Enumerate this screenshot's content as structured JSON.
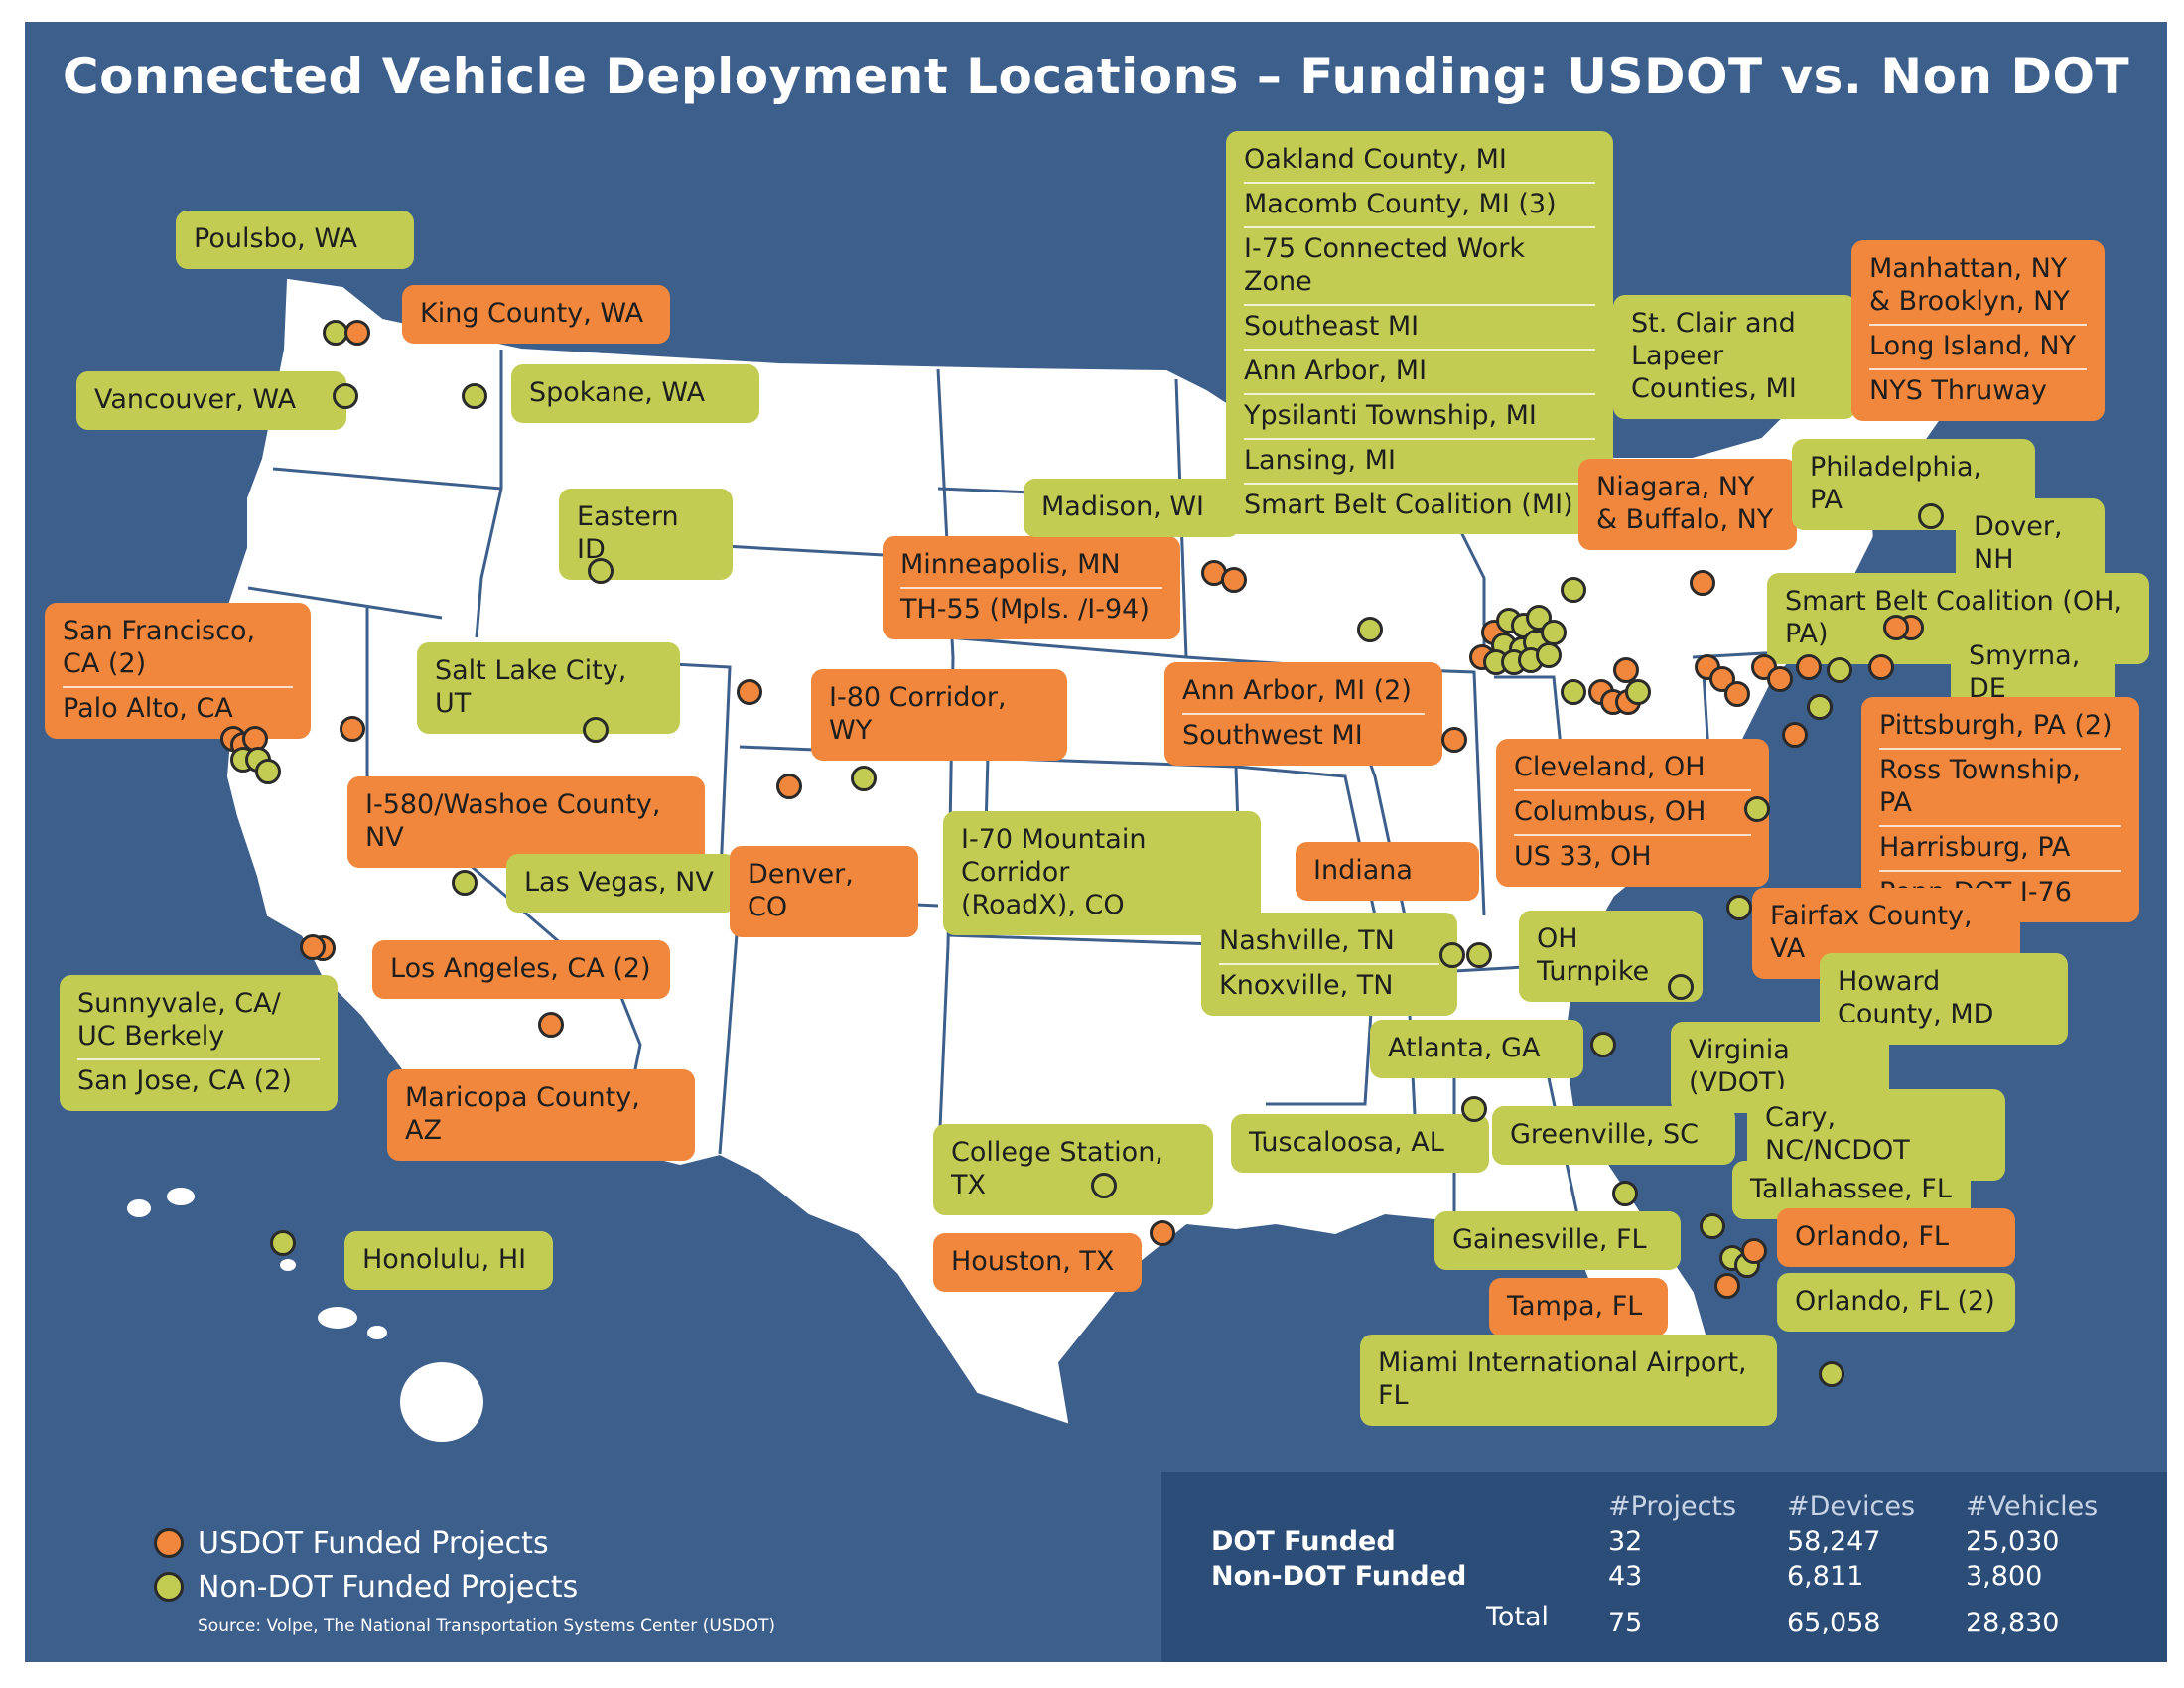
{
  "title": "Connected Vehicle Deployment Locations – Funding: USDOT vs. Non DOT",
  "colors": {
    "background": "#3d5f8c",
    "land": "#ffffff",
    "borders": "#3d5f8c",
    "usdot": "#f0873c",
    "non_dot": "#c3cc52"
  },
  "callouts": [
    {
      "lines": [
        "Poulsbo, WA"
      ],
      "type": "non_dot"
    },
    {
      "lines": [
        "King County, WA"
      ],
      "type": "usdot"
    },
    {
      "lines": [
        "Vancouver, WA"
      ],
      "type": "non_dot"
    },
    {
      "lines": [
        "Spokane, WA"
      ],
      "type": "non_dot"
    },
    {
      "lines": [
        "Eastern ID"
      ],
      "type": "non_dot"
    },
    {
      "lines": [
        "San Francisco, CA (2)",
        "Palo Alto, CA"
      ],
      "type": "usdot"
    },
    {
      "lines": [
        "Salt Lake City, UT"
      ],
      "type": "non_dot"
    },
    {
      "lines": [
        "I-580/Washoe County, NV"
      ],
      "type": "usdot"
    },
    {
      "lines": [
        "Las Vegas, NV"
      ],
      "type": "non_dot"
    },
    {
      "lines": [
        "Los Angeles, CA (2)"
      ],
      "type": "usdot"
    },
    {
      "lines": [
        "Sunnyvale, CA/\nUC Berkely",
        "San Jose, CA (2)"
      ],
      "type": "non_dot"
    },
    {
      "lines": [
        "Maricopa County, AZ"
      ],
      "type": "usdot"
    },
    {
      "lines": [
        "Honolulu, HI"
      ],
      "type": "non_dot"
    },
    {
      "lines": [
        "I-80 Corridor, WY"
      ],
      "type": "usdot"
    },
    {
      "lines": [
        "Denver, CO"
      ],
      "type": "usdot"
    },
    {
      "lines": [
        "I-70 Mountain Corridor\n(RoadX), CO"
      ],
      "type": "non_dot"
    },
    {
      "lines": [
        "Minneapolis, MN",
        "TH-55 (Mpls. /I-94)"
      ],
      "type": "usdot"
    },
    {
      "lines": [
        "Madison, WI"
      ],
      "type": "non_dot"
    },
    {
      "lines": [
        "College Station, TX"
      ],
      "type": "non_dot"
    },
    {
      "lines": [
        "Houston, TX"
      ],
      "type": "usdot"
    },
    {
      "lines": [
        "Oakland County, MI",
        "Macomb County, MI (3)",
        "I-75 Connected Work Zone",
        "Southeast MI",
        "Ann Arbor, MI",
        "Ypsilanti Township, MI",
        "Lansing, MI",
        "Smart Belt Coalition (MI)"
      ],
      "type": "non_dot"
    },
    {
      "lines": [
        "St. Clair and\nLapeer Counties, MI"
      ],
      "type": "non_dot"
    },
    {
      "lines": [
        "Manhattan, NY\n& Brooklyn, NY",
        "Long Island, NY",
        "NYS Thruway"
      ],
      "type": "usdot"
    },
    {
      "lines": [
        "Niagara, NY\n& Buffalo, NY"
      ],
      "type": "usdot"
    },
    {
      "lines": [
        "Philadelphia, PA"
      ],
      "type": "non_dot"
    },
    {
      "lines": [
        "Dover, NH"
      ],
      "type": "non_dot"
    },
    {
      "lines": [
        "Smart Belt Coalition (OH, PA)"
      ],
      "type": "non_dot"
    },
    {
      "lines": [
        "Smyrna, DE"
      ],
      "type": "non_dot"
    },
    {
      "lines": [
        "Ann Arbor, MI (2)",
        "Southwest MI"
      ],
      "type": "usdot"
    },
    {
      "lines": [
        "Cleveland, OH",
        "Columbus, OH",
        "US 33, OH"
      ],
      "type": "usdot"
    },
    {
      "lines": [
        "Pittsburgh, PA (2)",
        "Ross Township, PA",
        "Harrisburg, PA",
        "Penn DOT I-76"
      ],
      "type": "usdot"
    },
    {
      "lines": [
        "Indiana"
      ],
      "type": "usdot"
    },
    {
      "lines": [
        "OH Turnpike"
      ],
      "type": "non_dot"
    },
    {
      "lines": [
        "Fairfax County, VA"
      ],
      "type": "usdot"
    },
    {
      "lines": [
        "Nashville, TN",
        "Knoxville, TN"
      ],
      "type": "non_dot"
    },
    {
      "lines": [
        "Howard County, MD"
      ],
      "type": "non_dot"
    },
    {
      "lines": [
        "Atlanta, GA"
      ],
      "type": "non_dot"
    },
    {
      "lines": [
        "Virginia (VDOT)"
      ],
      "type": "non_dot"
    },
    {
      "lines": [
        "Cary, NC/NCDOT"
      ],
      "type": "non_dot"
    },
    {
      "lines": [
        "Tuscaloosa, AL"
      ],
      "type": "non_dot"
    },
    {
      "lines": [
        "Greenville, SC"
      ],
      "type": "non_dot"
    },
    {
      "lines": [
        "Tallahassee, FL"
      ],
      "type": "non_dot"
    },
    {
      "lines": [
        "Gainesville, FL"
      ],
      "type": "non_dot"
    },
    {
      "lines": [
        "Orlando, FL"
      ],
      "type": "usdot"
    },
    {
      "lines": [
        "Tampa, FL"
      ],
      "type": "usdot"
    },
    {
      "lines": [
        "Orlando, FL (2)"
      ],
      "type": "non_dot"
    },
    {
      "lines": [
        "Miami International Airport, FL"
      ],
      "type": "non_dot"
    }
  ],
  "legend": {
    "usdot_label": "USDOT Funded Projects",
    "non_dot_label": "Non-DOT Funded Projects",
    "source": "Source: Volpe, The National Transportation Systems Center (USDOT)"
  },
  "stats": {
    "headers": [
      "#Projects",
      "#Devices",
      "#Vehicles"
    ],
    "rows": [
      {
        "label": "DOT Funded",
        "projects": "32",
        "devices": "58,247",
        "vehicles": "25,030"
      },
      {
        "label": "Non-DOT Funded",
        "projects": "43",
        "devices": "6,811",
        "vehicles": "3,800"
      },
      {
        "label": "Total",
        "projects": "75",
        "devices": "65,058",
        "vehicles": "28,830"
      }
    ]
  }
}
